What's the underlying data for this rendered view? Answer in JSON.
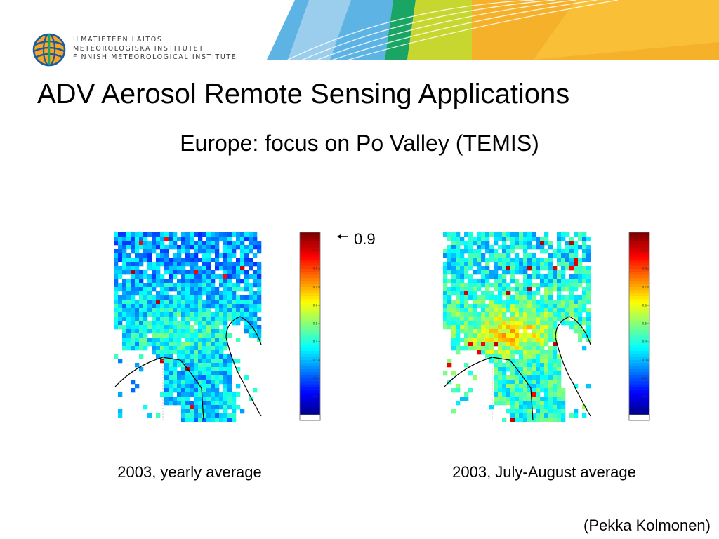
{
  "header": {
    "org_lines": [
      "ILMATIETEEN LAITOS",
      "METEOROLOGISKA INSTITUTET",
      "FINNISH METEOROLOGICAL INSTITUTE"
    ],
    "logo_icon": "fmi-globe-logo-icon",
    "banner_colors": [
      "#5db4e4",
      "#aad4ee",
      "#1aa564",
      "#c8d730",
      "#f6b12b",
      "#fbc43c"
    ]
  },
  "slide": {
    "title": "ADV Aerosol Remote Sensing Applications",
    "subtitle": "Europe: focus on Po Valley (TEMIS)"
  },
  "annotation": {
    "value": "0.9",
    "arrow_icon": "left-arrow-icon"
  },
  "panels": [
    {
      "caption": "2003, yearly average",
      "seed": 7,
      "mean": 0.33,
      "colorbar_ticks": [
        "0.1",
        "0.2",
        "0.3",
        "0.4",
        "0.5",
        "0.6",
        "0.7",
        "0.8",
        "0.9"
      ]
    },
    {
      "caption": "2003, July-August average",
      "seed": 23,
      "mean": 0.42,
      "colorbar_ticks": [
        "0.1",
        "0.2",
        "0.3",
        "0.4",
        "0.5",
        "0.6",
        "0.7",
        "0.8",
        "0.9"
      ]
    }
  ],
  "credit": "(Pekka Kolmonen)"
}
